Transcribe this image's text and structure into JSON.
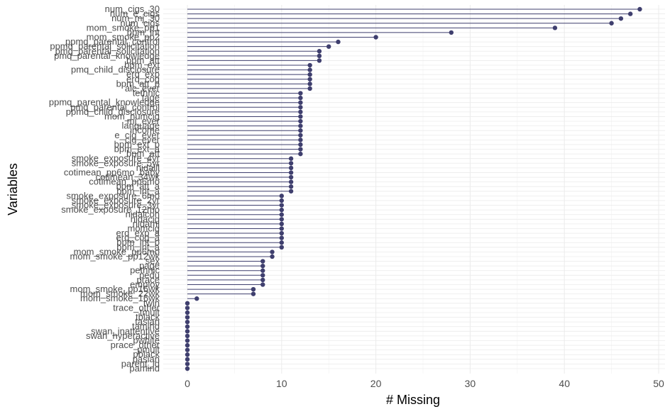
{
  "chart_data": {
    "type": "lollipop",
    "xlabel": "# Missing",
    "ylabel": "Variables",
    "xlim": [
      -2,
      50.5
    ],
    "x_ticks": [
      0,
      10,
      20,
      30,
      40,
      50
    ],
    "grid": true,
    "colors": {
      "point": "#3f3f6e",
      "segment": "#3f3f6e",
      "grid": "#ebebeb",
      "text": "#4d4d4d"
    },
    "categories": [
      "num_cigs_30",
      "num_e_cigs",
      "num_mj_30",
      "num_cigs",
      "mom_smoke_pp1",
      "bpm_int",
      "mom_smoke_pp2",
      "ppmq_parental_control",
      "ppmq_parental_solicitation",
      "pmq_parental_solicitation",
      "pmq_parental_knowledge",
      "bpm_att",
      "bpm_ext",
      "pmq_child_disclosure",
      "erq_exp",
      "erq_cog",
      "bpm_att_p",
      "alc_ever",
      "tethnic",
      "tage",
      "ppmq_parental_knowledge",
      "pmq_parental_control",
      "ppmq_child_disclosure",
      "mom_numcig",
      "mj_ever",
      "language",
      "income",
      "e_cig_ever",
      "cig_ever",
      "bpm_ext_p",
      "bpm_ext_a",
      "bpm_att",
      "smoke_exposure_4yr",
      "smoke_exposure_5yr",
      "nidaill",
      "cotimean_pp6mo_baby",
      "cotimean_34wk",
      "cotimean_pp6mo",
      "bpm_att_a",
      "bpm_int_a",
      "smoke_exposure_6mo",
      "smoke_exposure_2yr",
      "smoke_exposure_3yr",
      "smoke_exposure_12mo",
      "nidalcoh",
      "nidacig",
      "nidamj",
      "momcig",
      "erq_exp_a",
      "erq_cog_a",
      "bpm_int_p",
      "bpm_int_a",
      "mom_smoke_pp6mo",
      "mom_smoke_pp12wk",
      "sex",
      "page",
      "pethnic",
      "pedu",
      "prace",
      "employ",
      "mom_smoke_pp16wk",
      "mom_smoke_22wk",
      "mom_smoke_16wk",
      "twin",
      "trace_other",
      "tmult",
      "tblack",
      "tasian",
      "tamind",
      "swan_inattentive",
      "swan_hyperactive",
      "pwhite",
      "prace_other",
      "pmult",
      "pblack",
      "pasian",
      "parent_id",
      "pamind"
    ],
    "values": [
      48,
      47,
      46,
      45,
      39,
      28,
      20,
      16,
      15,
      14,
      14,
      14,
      13,
      13,
      13,
      13,
      13,
      13,
      12,
      12,
      12,
      12,
      12,
      12,
      12,
      12,
      12,
      12,
      12,
      12,
      12,
      12,
      11,
      11,
      11,
      11,
      11,
      11,
      11,
      11,
      10,
      10,
      10,
      10,
      10,
      10,
      10,
      10,
      10,
      10,
      10,
      10,
      9,
      9,
      8,
      8,
      8,
      8,
      8,
      8,
      7,
      7,
      1,
      0,
      0,
      0,
      0,
      0,
      0,
      0,
      0,
      0,
      0,
      0,
      0,
      0,
      0,
      0
    ]
  }
}
